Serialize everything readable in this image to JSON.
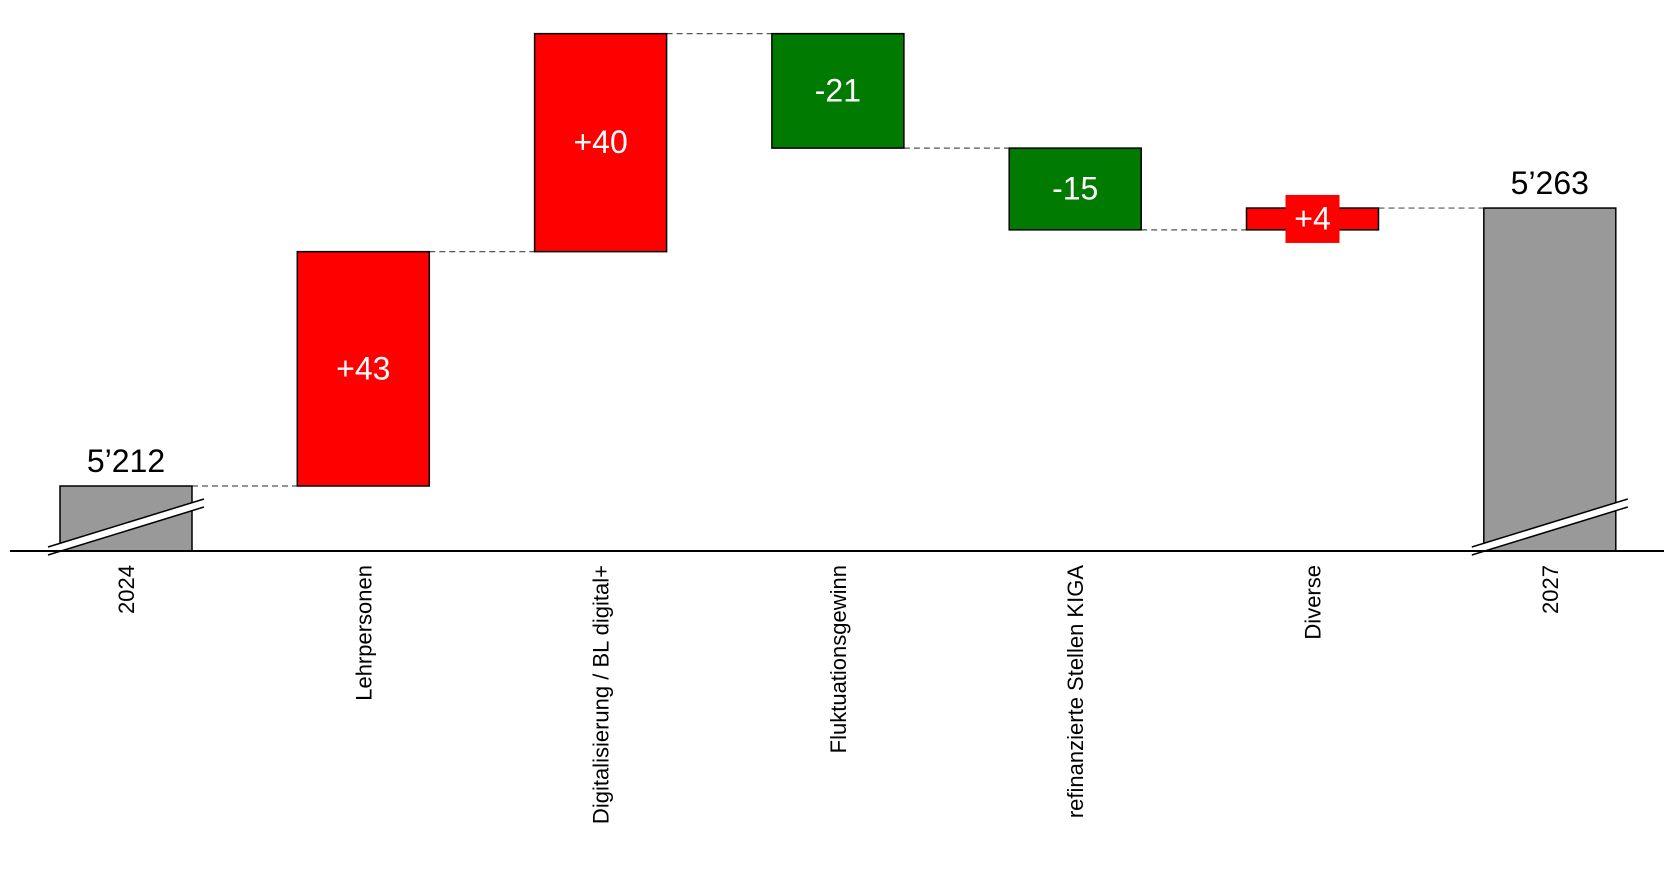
{
  "chart_data": {
    "type": "bar",
    "subtype": "waterfall",
    "title": "",
    "xlabel": "",
    "ylabel": "",
    "grid": false,
    "legend": "none",
    "axis_break": true,
    "categories": [
      "2024",
      "Lehrpersonen",
      "Digitalisierung / BL digital+",
      "Fluktuationsgewinn",
      "refinanzierte Stellen KIGA",
      "Diverse",
      "2027"
    ],
    "values": [
      5212,
      43,
      40,
      -21,
      -15,
      4,
      5263
    ],
    "kinds": [
      "total",
      "delta",
      "delta",
      "delta",
      "delta",
      "delta",
      "total"
    ],
    "labels": [
      "5’212",
      "+43",
      "+40",
      "-21",
      "-15",
      "+4",
      "5’263"
    ],
    "colors": {
      "increase": "#ff0000",
      "decrease": "#007a00",
      "total": "#999999",
      "label_on_bar": "#ffffff",
      "label_total": "#000000",
      "connector": "#555555"
    }
  }
}
